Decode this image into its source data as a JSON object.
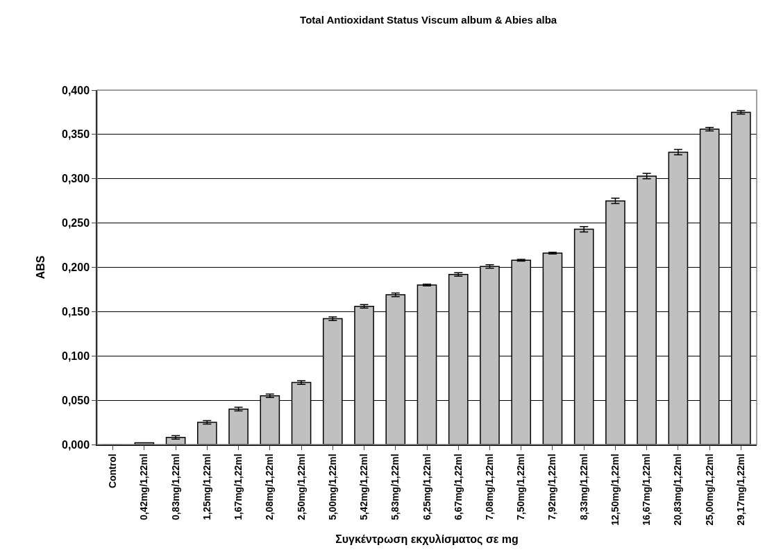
{
  "chart_data": {
    "type": "bar",
    "title": "Total Antioxidant Status Viscum album & Abies alba",
    "xlabel": "Συγκέντρωση εκχυλίσματος σε mg",
    "ylabel": "ABS",
    "categories": [
      "Control",
      "0,42mg/1,22ml",
      "0,83mg/1,22ml",
      "1,25mg/1,22ml",
      "1,67mg/1,22ml",
      "2,08mg/1,22ml",
      "2,50mg/1,22ml",
      "5,00mg/1,22ml",
      "5,42mg/1,22ml",
      "5,83mg/1,22ml",
      "6,25mg/1,22ml",
      "6,67mg/1,22ml",
      "7,08mg/1,22ml",
      "7,50mg/1,22ml",
      "7,92mg/1,22ml",
      "8,33mg/1,22ml",
      "12,50mg/1,22ml",
      "16,67mg/1,22ml",
      "20,83mg/1,22ml",
      "25,00mg/1,22ml",
      "29,17mg/1,22ml"
    ],
    "values": [
      0.0,
      0.002,
      0.008,
      0.025,
      0.04,
      0.055,
      0.07,
      0.142,
      0.156,
      0.169,
      0.18,
      0.192,
      0.201,
      0.208,
      0.216,
      0.243,
      0.275,
      0.303,
      0.33,
      0.356,
      0.375
    ],
    "errors": [
      null,
      null,
      0.002,
      0.002,
      0.002,
      0.002,
      0.002,
      0.002,
      0.002,
      0.002,
      0.001,
      0.002,
      0.002,
      0.001,
      0.001,
      0.003,
      0.003,
      0.003,
      0.003,
      0.002,
      0.002
    ],
    "color": "#c0c0c0",
    "ylim": [
      0,
      0.4
    ],
    "yticks": [
      {
        "value": 0,
        "label": "0,000"
      },
      {
        "value": 0.05,
        "label": "0,050"
      },
      {
        "value": 0.1,
        "label": "0,100"
      },
      {
        "value": 0.15,
        "label": "0,150"
      },
      {
        "value": 0.2,
        "label": "0,200"
      },
      {
        "value": 0.25,
        "label": "0,250"
      },
      {
        "value": 0.3,
        "label": "0,300"
      },
      {
        "value": 0.35,
        "label": "0,350"
      },
      {
        "value": 0.4,
        "label": "0,400"
      }
    ],
    "grid": "y",
    "legend": false
  }
}
